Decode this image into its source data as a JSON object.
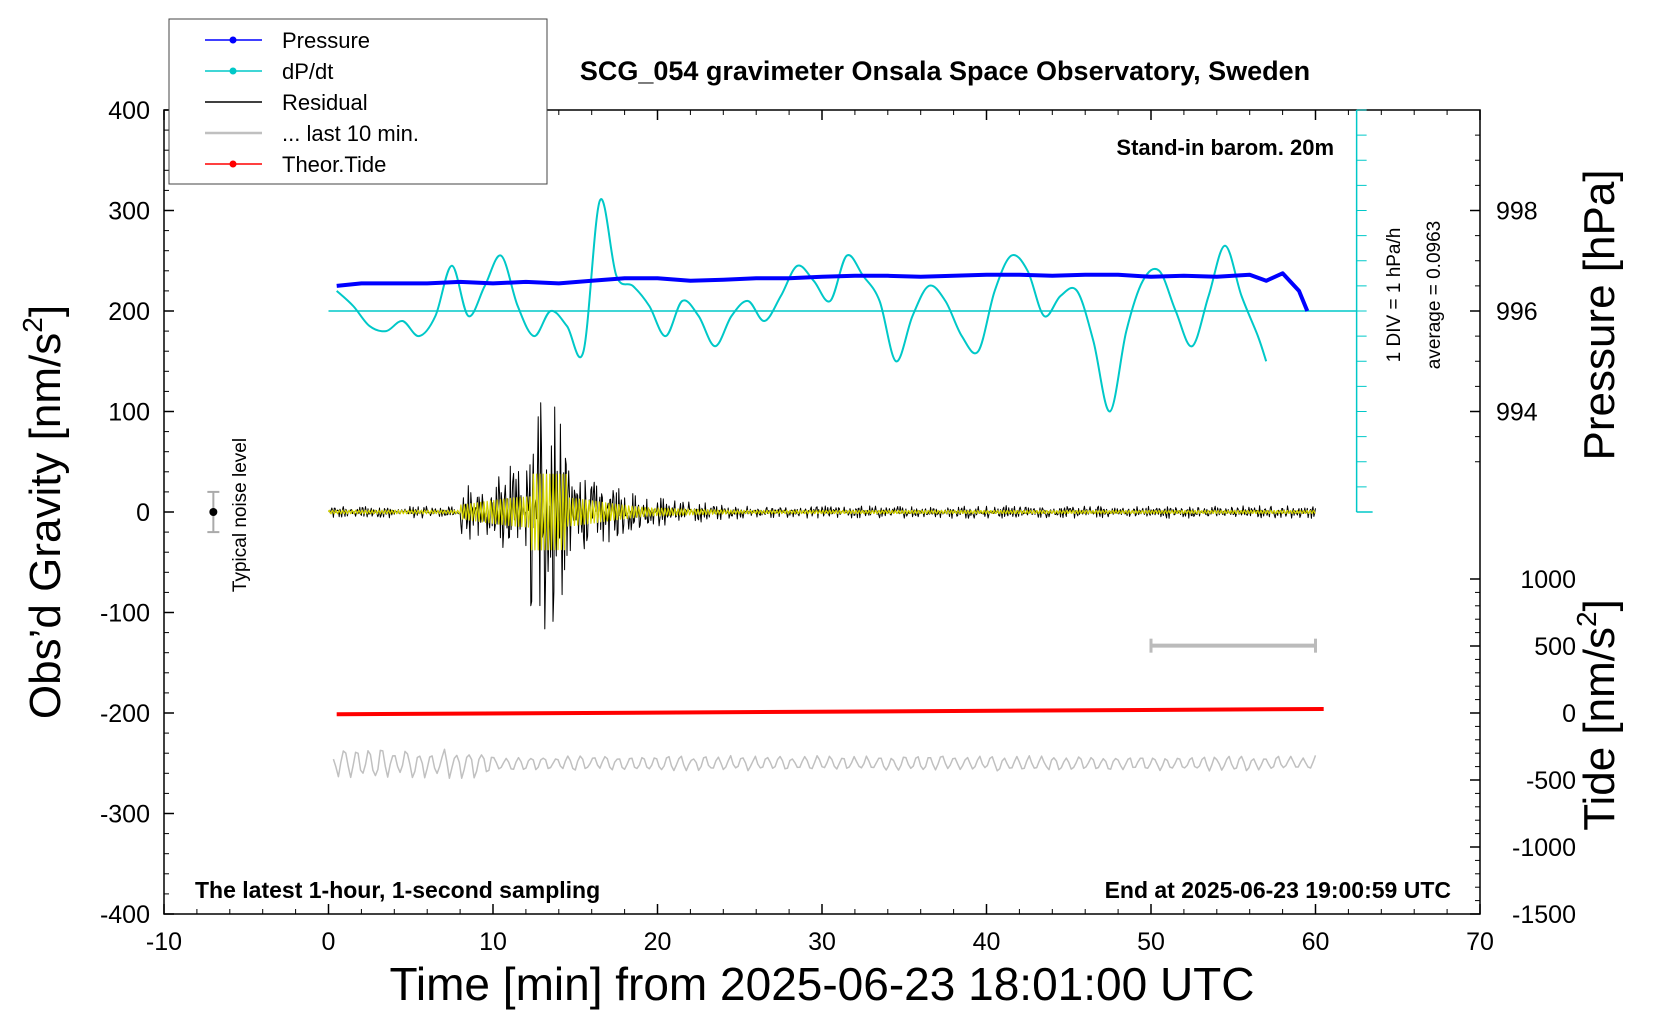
{
  "chart_data": {
    "type": "line",
    "title": "SCG_054 gravimeter Onsala Space Observatory, Sweden",
    "xlabel": "Time [min] from 2025-06-23 18:01:00 UTC",
    "ylabel_left_text": "Obs’d Gravity [nm/s",
    "ylabel_left_sup": "2",
    "ylabel_left_close": "]",
    "ylabel_right_pressure": "Pressure [hPa]",
    "ylabel_right_tide_text": "Tide [nm/s",
    "ylabel_right_tide_sup": "2",
    "ylabel_right_tide_close": "]",
    "xlim": [
      -10,
      70
    ],
    "ylim": [
      -400,
      400
    ],
    "x_ticks": [
      "-10",
      "0",
      "10",
      "20",
      "30",
      "40",
      "50",
      "60",
      "70"
    ],
    "y_ticks": [
      "400",
      "300",
      "200",
      "100",
      "0",
      "-100",
      "-200",
      "-300",
      "-400"
    ],
    "pressure_ticks": [
      "998",
      "996",
      "994"
    ],
    "pressure_range": [
      992,
      1000
    ],
    "tide_ticks": [
      "1000",
      "500",
      "0",
      "-500",
      "-1000",
      "-1500"
    ],
    "tide_range": [
      -1500,
      1500
    ],
    "annotations": {
      "standin": "Stand-in barom. 20m",
      "div": "1 DIV = 1 hPa/h",
      "average": "average = 0.0963",
      "noise": "Typical noise level",
      "latest": "The latest 1-hour, 1-second sampling",
      "end": "End at 2025-06-23 19:00:59 UTC"
    },
    "legend": [
      {
        "label": "Pressure",
        "color": "#0000ff",
        "marker": true
      },
      {
        "label": "dP/dt",
        "color": "#00c8c8",
        "marker": true
      },
      {
        "label": "Residual",
        "color": "#000000",
        "marker": false
      },
      {
        "label": "... last 10 min.",
        "color": "#c0c0c0",
        "marker": false
      },
      {
        "label": "Theor.Tide",
        "color": "#ff0000",
        "marker": true
      }
    ],
    "colors": {
      "pressure": "#0000ff",
      "dpdt": "#00c8c8",
      "residual": "#000000",
      "residual_filtered": "#d4d400",
      "last10": "#c0c0c0",
      "tide": "#ff0000"
    },
    "pressure_series": {
      "x": [
        0.5,
        2,
        4,
        6,
        8,
        10,
        12,
        14,
        16,
        18,
        20,
        22,
        24,
        26,
        28,
        30,
        32,
        34,
        36,
        38,
        40,
        42,
        44,
        46,
        48,
        50,
        52,
        54,
        56,
        57,
        58,
        59,
        59.5
      ],
      "y": [
        996.5,
        996.55,
        996.55,
        996.55,
        996.58,
        996.55,
        996.58,
        996.55,
        996.6,
        996.65,
        996.65,
        996.6,
        996.62,
        996.65,
        996.65,
        996.68,
        996.7,
        996.7,
        996.68,
        996.7,
        996.72,
        996.72,
        996.7,
        996.72,
        996.72,
        996.68,
        996.7,
        996.68,
        996.72,
        996.6,
        996.75,
        996.4,
        996.0
      ]
    },
    "dpdt_series": {
      "x": [
        0.5,
        1.5,
        2.5,
        3.5,
        4.5,
        5.5,
        6.5,
        7.5,
        8.5,
        9.5,
        10.5,
        11.5,
        12.5,
        13.5,
        14.5,
        15.5,
        16.5,
        17.5,
        18.5,
        19.5,
        20.5,
        21.5,
        22.5,
        23.5,
        24.5,
        25.5,
        26.5,
        27.5,
        28.5,
        29.5,
        30.5,
        31.5,
        32.5,
        33.5,
        34.5,
        35.5,
        36.5,
        37.5,
        38.5,
        39.5,
        40.5,
        41.5,
        42.5,
        43.5,
        44.5,
        45.5,
        46.5,
        47.5,
        48.5,
        49.5,
        50.5,
        51.5,
        52.5,
        53.5,
        54.5,
        55.5,
        56.5,
        57.0
      ],
      "y": [
        220,
        205,
        185,
        180,
        190,
        175,
        195,
        245,
        195,
        225,
        255,
        205,
        175,
        200,
        185,
        160,
        310,
        235,
        225,
        205,
        175,
        210,
        195,
        165,
        195,
        210,
        190,
        215,
        245,
        230,
        210,
        255,
        235,
        210,
        150,
        195,
        225,
        210,
        175,
        160,
        220,
        255,
        240,
        195,
        215,
        220,
        170,
        100,
        180,
        230,
        240,
        200,
        165,
        215,
        265,
        215,
        175,
        150
      ]
    },
    "tide_series": {
      "x": [
        0.5,
        60.5
      ],
      "y": [
        -10,
        30
      ]
    },
    "noise_bar": {
      "x": -7,
      "center": 0,
      "half_range": 20
    },
    "last10_bar": {
      "x_from": 50,
      "x_to": 60,
      "y": -133
    }
  }
}
